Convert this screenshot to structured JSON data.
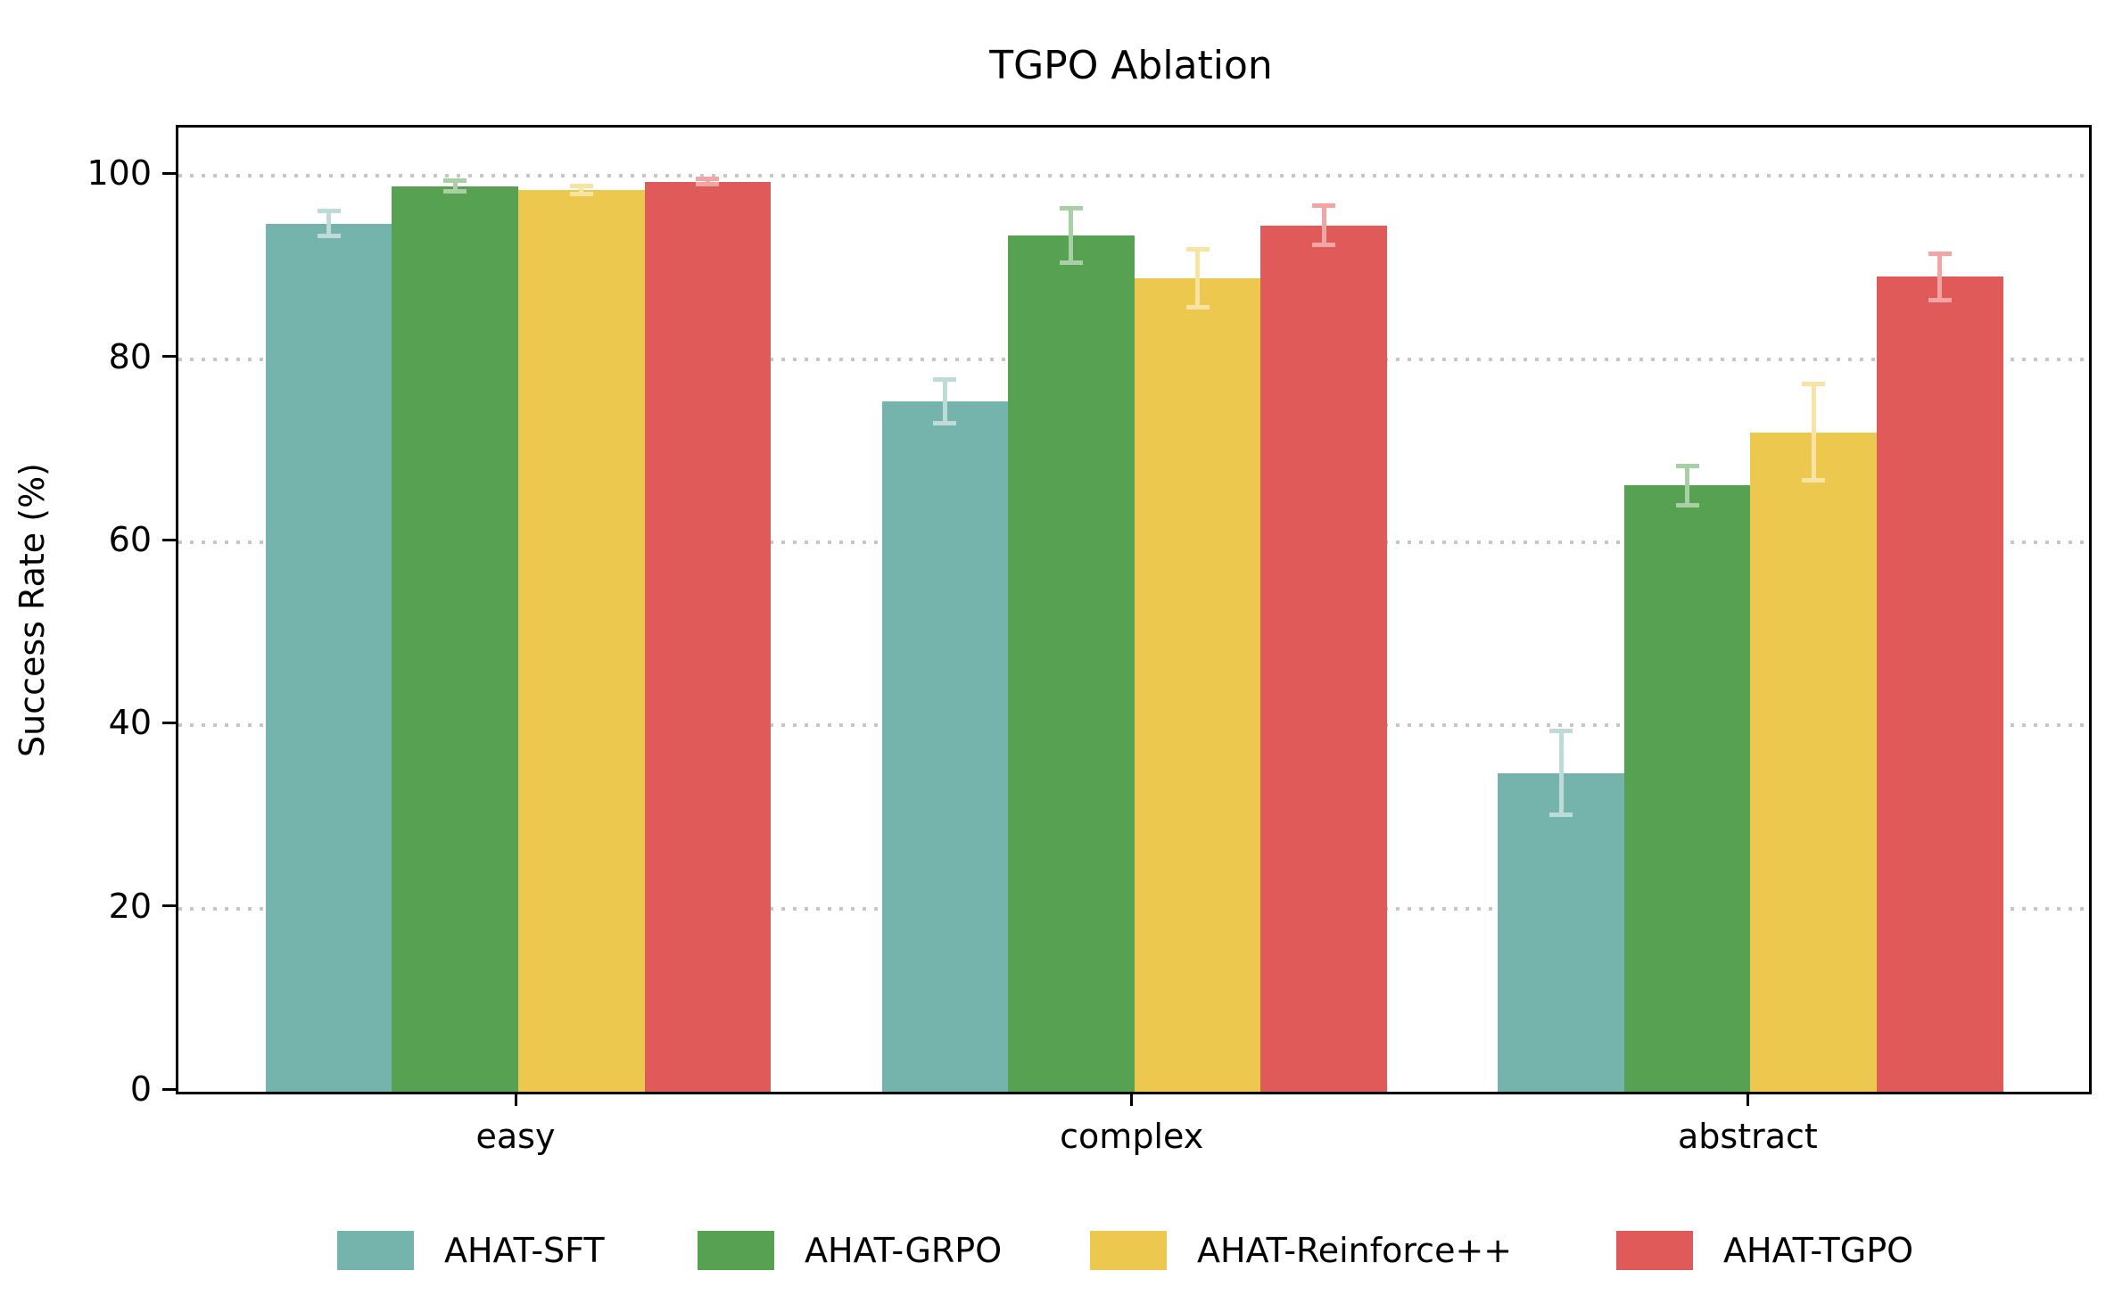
{
  "chart_data": {
    "type": "bar",
    "title": "TGPO Ablation",
    "ylabel": "Success Rate (%)",
    "xlabel": "",
    "categories": [
      "easy",
      "complex",
      "abstract"
    ],
    "series": [
      {
        "name": "AHAT-SFT",
        "color": "#75b4ad",
        "error_color": "#bedbd7",
        "values": [
          94.8,
          75.4,
          34.8
        ],
        "errors": [
          1.6,
          2.6,
          4.8
        ]
      },
      {
        "name": "AHAT-GRPO",
        "color": "#57a153",
        "error_color": "#a9cfa4",
        "values": [
          98.9,
          93.5,
          66.2
        ],
        "errors": [
          0.8,
          3.2,
          2.4
        ]
      },
      {
        "name": "AHAT-Reinforce++",
        "color": "#ecc84e",
        "error_color": "#f7e4a2",
        "values": [
          98.5,
          88.8,
          72.0
        ],
        "errors": [
          0.7,
          3.4,
          5.5
        ]
      },
      {
        "name": "AHAT-TGPO",
        "color": "#e05a59",
        "error_color": "#f1a6a5",
        "values": [
          99.4,
          94.6,
          89.0
        ],
        "errors": [
          0.5,
          2.4,
          2.8
        ]
      }
    ],
    "yticks": [
      0,
      20,
      40,
      60,
      80,
      100
    ],
    "ylim": [
      0,
      105.3
    ],
    "grid": "horizontal-dotted",
    "gridline_color": "#c6c6c6",
    "legend_position": "bottom",
    "background_color": "#ffffff",
    "text_color": "#000000"
  }
}
